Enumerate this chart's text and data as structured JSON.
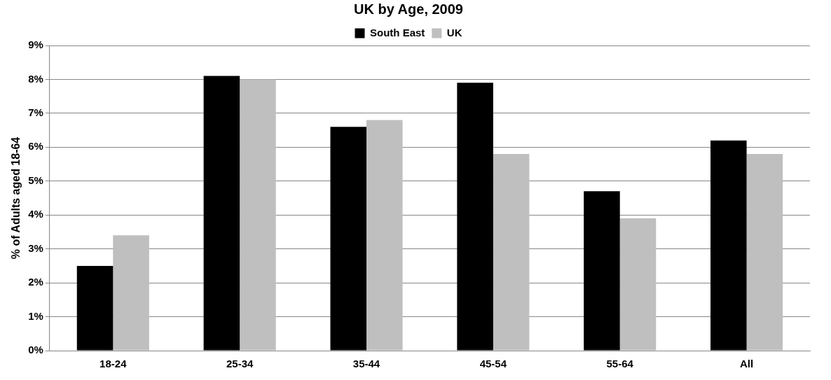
{
  "chart_data": {
    "type": "bar",
    "title": "UK by Age, 2009",
    "ylabel": "% of Adults aged 18-64",
    "categories": [
      "18-24",
      "25-34",
      "35-44",
      "45-54",
      "55-64",
      "All"
    ],
    "series": [
      {
        "name": "South East",
        "color": "#000000",
        "values": [
          2.5,
          8.1,
          6.6,
          7.9,
          4.7,
          6.2
        ]
      },
      {
        "name": "UK",
        "color": "#bfbfbf",
        "values": [
          3.4,
          8.0,
          6.8,
          5.8,
          3.9,
          5.8
        ]
      }
    ],
    "ylim": [
      0,
      9
    ],
    "yticks": [
      {
        "value": 0,
        "label": "0%"
      },
      {
        "value": 1,
        "label": "1%"
      },
      {
        "value": 2,
        "label": "2%"
      },
      {
        "value": 3,
        "label": "3%"
      },
      {
        "value": 4,
        "label": "4%"
      },
      {
        "value": 5,
        "label": "5%"
      },
      {
        "value": 6,
        "label": "6%"
      },
      {
        "value": 7,
        "label": "7%"
      },
      {
        "value": 8,
        "label": "8%"
      },
      {
        "value": 9,
        "label": "9%"
      }
    ],
    "grid": "y",
    "legend": "top"
  }
}
